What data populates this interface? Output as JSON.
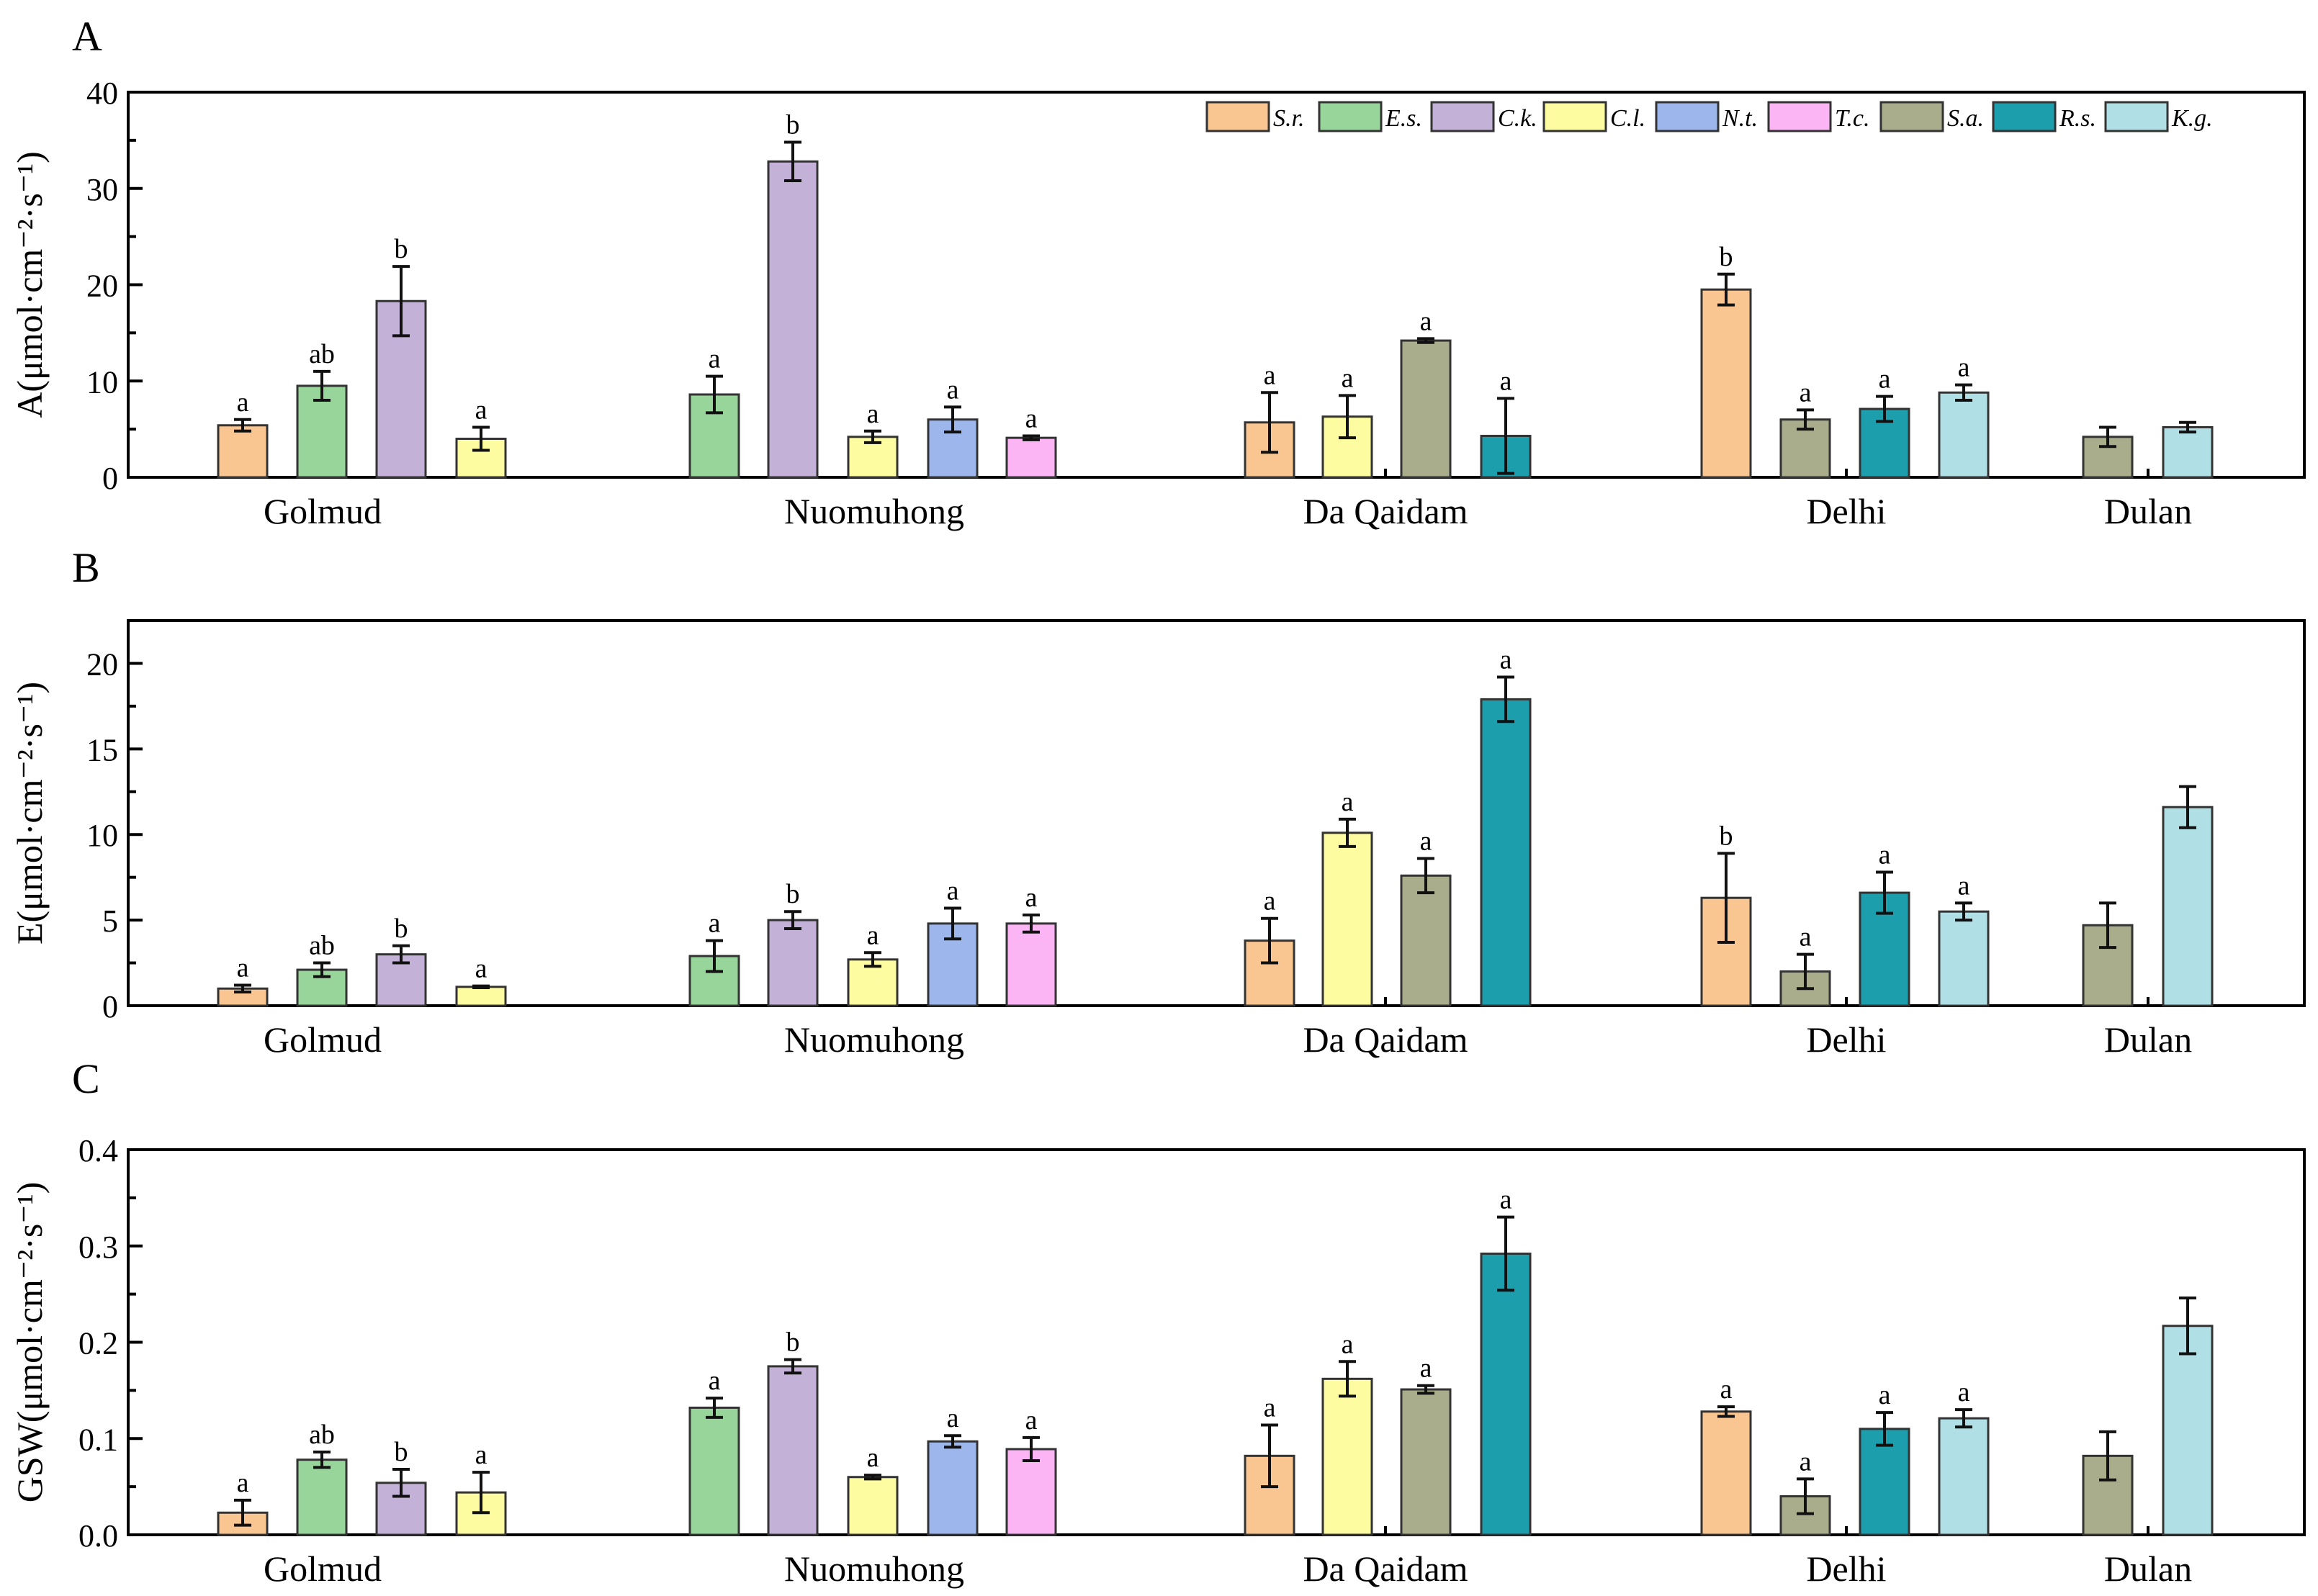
{
  "chart_data": [
    {
      "type": "bar",
      "panel_label": "A",
      "ylabel": "A(μmol·cm⁻²·s⁻¹)",
      "ylim": [
        0,
        40
      ],
      "yticks": [
        0,
        10,
        20,
        30,
        40
      ],
      "categories": [
        "Golmud",
        "Nuomuhong",
        "Da Qaidam",
        "Delhi",
        "Dulan"
      ],
      "legend": {
        "placement": "top-right"
      },
      "bars": [
        {
          "category": "Golmud",
          "species": "S.r.",
          "value": 5.4,
          "error": 0.6,
          "letter": "a"
        },
        {
          "category": "Golmud",
          "species": "E.s.",
          "value": 9.5,
          "error": 1.5,
          "letter": "ab"
        },
        {
          "category": "Golmud",
          "species": "C.k.",
          "value": 18.3,
          "error": 3.6,
          "letter": "b"
        },
        {
          "category": "Golmud",
          "species": "C.l.",
          "value": 4.0,
          "error": 1.2,
          "letter": "a"
        },
        {
          "category": "Nuomuhong",
          "species": "E.s.",
          "value": 8.6,
          "error": 1.9,
          "letter": "a"
        },
        {
          "category": "Nuomuhong",
          "species": "C.k.",
          "value": 32.8,
          "error": 2.0,
          "letter": "b"
        },
        {
          "category": "Nuomuhong",
          "species": "C.l.",
          "value": 4.2,
          "error": 0.6,
          "letter": "a"
        },
        {
          "category": "Nuomuhong",
          "species": "N.t.",
          "value": 6.0,
          "error": 1.3,
          "letter": "a"
        },
        {
          "category": "Nuomuhong",
          "species": "T.c.",
          "value": 4.1,
          "error": 0.2,
          "letter": "a"
        },
        {
          "category": "Da Qaidam",
          "species": "S.r.",
          "value": 5.7,
          "error": 3.1,
          "letter": "a"
        },
        {
          "category": "Da Qaidam",
          "species": "C.l.",
          "value": 6.3,
          "error": 2.2,
          "letter": "a"
        },
        {
          "category": "Da Qaidam",
          "species": "S.a.",
          "value": 14.2,
          "error": 0.2,
          "letter": "a"
        },
        {
          "category": "Da Qaidam",
          "species": "R.s.",
          "value": 4.3,
          "error": 3.9,
          "letter": "a"
        },
        {
          "category": "Delhi",
          "species": "S.r.",
          "value": 19.5,
          "error": 1.6,
          "letter": "b"
        },
        {
          "category": "Delhi",
          "species": "S.a.",
          "value": 6.0,
          "error": 1.0,
          "letter": "a"
        },
        {
          "category": "Delhi",
          "species": "R.s.",
          "value": 7.1,
          "error": 1.3,
          "letter": "a"
        },
        {
          "category": "Delhi",
          "species": "K.g.",
          "value": 8.8,
          "error": 0.8,
          "letter": "a"
        },
        {
          "category": "Dulan",
          "species": "S.a.",
          "value": 4.2,
          "error": 1.0,
          "letter": ""
        },
        {
          "category": "Dulan",
          "species": "K.g.",
          "value": 5.2,
          "error": 0.5,
          "letter": ""
        }
      ]
    },
    {
      "type": "bar",
      "panel_label": "B",
      "ylabel": "E(μmol·cm⁻²·s⁻¹)",
      "ylim": [
        0,
        22.5
      ],
      "yticks": [
        0,
        5,
        10,
        15,
        20
      ],
      "categories": [
        "Golmud",
        "Nuomuhong",
        "Da Qaidam",
        "Delhi",
        "Dulan"
      ],
      "bars": [
        {
          "category": "Golmud",
          "species": "S.r.",
          "value": 1.0,
          "error": 0.2,
          "letter": "a"
        },
        {
          "category": "Golmud",
          "species": "E.s.",
          "value": 2.1,
          "error": 0.4,
          "letter": "ab"
        },
        {
          "category": "Golmud",
          "species": "C.k.",
          "value": 3.0,
          "error": 0.5,
          "letter": "b"
        },
        {
          "category": "Golmud",
          "species": "C.l.",
          "value": 1.1,
          "error": 0.05,
          "letter": "a"
        },
        {
          "category": "Nuomuhong",
          "species": "E.s.",
          "value": 2.9,
          "error": 0.9,
          "letter": "a"
        },
        {
          "category": "Nuomuhong",
          "species": "C.k.",
          "value": 5.0,
          "error": 0.5,
          "letter": "b"
        },
        {
          "category": "Nuomuhong",
          "species": "C.l.",
          "value": 2.7,
          "error": 0.4,
          "letter": "a"
        },
        {
          "category": "Nuomuhong",
          "species": "N.t.",
          "value": 4.8,
          "error": 0.9,
          "letter": "a"
        },
        {
          "category": "Nuomuhong",
          "species": "T.c.",
          "value": 4.8,
          "error": 0.5,
          "letter": "a"
        },
        {
          "category": "Da Qaidam",
          "species": "S.r.",
          "value": 3.8,
          "error": 1.3,
          "letter": "a"
        },
        {
          "category": "Da Qaidam",
          "species": "C.l.",
          "value": 10.1,
          "error": 0.8,
          "letter": "a"
        },
        {
          "category": "Da Qaidam",
          "species": "S.a.",
          "value": 7.6,
          "error": 1.0,
          "letter": "a"
        },
        {
          "category": "Da Qaidam",
          "species": "R.s.",
          "value": 17.9,
          "error": 1.3,
          "letter": "a"
        },
        {
          "category": "Delhi",
          "species": "S.r.",
          "value": 6.3,
          "error": 2.6,
          "letter": "b"
        },
        {
          "category": "Delhi",
          "species": "S.a.",
          "value": 2.0,
          "error": 1.0,
          "letter": "a"
        },
        {
          "category": "Delhi",
          "species": "R.s.",
          "value": 6.6,
          "error": 1.2,
          "letter": "a"
        },
        {
          "category": "Delhi",
          "species": "K.g.",
          "value": 5.5,
          "error": 0.5,
          "letter": "a"
        },
        {
          "category": "Dulan",
          "species": "S.a.",
          "value": 4.7,
          "error": 1.3,
          "letter": ""
        },
        {
          "category": "Dulan",
          "species": "K.g.",
          "value": 11.6,
          "error": 1.2,
          "letter": ""
        }
      ]
    },
    {
      "type": "bar",
      "panel_label": "C",
      "ylabel": "GSW(μmol·cm⁻²·s⁻¹)",
      "ylim": [
        0,
        0.4
      ],
      "yticks": [
        0.0,
        0.1,
        0.2,
        0.3,
        0.4
      ],
      "ytick_labels": [
        "0.0",
        "0.1",
        "0.2",
        "0.3",
        "0.4"
      ],
      "categories": [
        "Golmud",
        "Nuomuhong",
        "Da Qaidam",
        "Delhi",
        "Dulan"
      ],
      "bars": [
        {
          "category": "Golmud",
          "species": "S.r.",
          "value": 0.023,
          "error": 0.013,
          "letter": "a"
        },
        {
          "category": "Golmud",
          "species": "E.s.",
          "value": 0.078,
          "error": 0.008,
          "letter": "ab"
        },
        {
          "category": "Golmud",
          "species": "C.k.",
          "value": 0.054,
          "error": 0.014,
          "letter": "b"
        },
        {
          "category": "Golmud",
          "species": "C.l.",
          "value": 0.044,
          "error": 0.021,
          "letter": "a"
        },
        {
          "category": "Nuomuhong",
          "species": "E.s.",
          "value": 0.132,
          "error": 0.01,
          "letter": "a"
        },
        {
          "category": "Nuomuhong",
          "species": "C.k.",
          "value": 0.175,
          "error": 0.007,
          "letter": "b"
        },
        {
          "category": "Nuomuhong",
          "species": "C.l.",
          "value": 0.06,
          "error": 0.002,
          "letter": "a"
        },
        {
          "category": "Nuomuhong",
          "species": "N.t.",
          "value": 0.097,
          "error": 0.006,
          "letter": "a"
        },
        {
          "category": "Nuomuhong",
          "species": "T.c.",
          "value": 0.089,
          "error": 0.012,
          "letter": "a"
        },
        {
          "category": "Da Qaidam",
          "species": "S.r.",
          "value": 0.082,
          "error": 0.032,
          "letter": "a"
        },
        {
          "category": "Da Qaidam",
          "species": "C.l.",
          "value": 0.162,
          "error": 0.018,
          "letter": "a"
        },
        {
          "category": "Da Qaidam",
          "species": "S.a.",
          "value": 0.151,
          "error": 0.004,
          "letter": "a"
        },
        {
          "category": "Da Qaidam",
          "species": "R.s.",
          "value": 0.292,
          "error": 0.038,
          "letter": "a"
        },
        {
          "category": "Delhi",
          "species": "S.r.",
          "value": 0.128,
          "error": 0.005,
          "letter": "a"
        },
        {
          "category": "Delhi",
          "species": "S.a.",
          "value": 0.04,
          "error": 0.018,
          "letter": "a"
        },
        {
          "category": "Delhi",
          "species": "R.s.",
          "value": 0.11,
          "error": 0.017,
          "letter": "a"
        },
        {
          "category": "Delhi",
          "species": "K.g.",
          "value": 0.121,
          "error": 0.009,
          "letter": "a"
        },
        {
          "category": "Dulan",
          "species": "S.a.",
          "value": 0.082,
          "error": 0.025,
          "letter": ""
        },
        {
          "category": "Dulan",
          "species": "K.g.",
          "value": 0.217,
          "error": 0.029,
          "letter": ""
        }
      ]
    }
  ],
  "species": [
    {
      "name": "S.r.",
      "color": "#f9c590"
    },
    {
      "name": "E.s.",
      "color": "#98d59a"
    },
    {
      "name": "C.k.",
      "color": "#c3b1d8"
    },
    {
      "name": "C.l.",
      "color": "#fdfca0"
    },
    {
      "name": "N.t.",
      "color": "#9db7ec"
    },
    {
      "name": "T.c.",
      "color": "#fbb4f4"
    },
    {
      "name": "S.a.",
      "color": "#a9ad8c"
    },
    {
      "name": "R.s.",
      "color": "#1d9eac"
    },
    {
      "name": "K.g.",
      "color": "#b0e0e6"
    }
  ]
}
